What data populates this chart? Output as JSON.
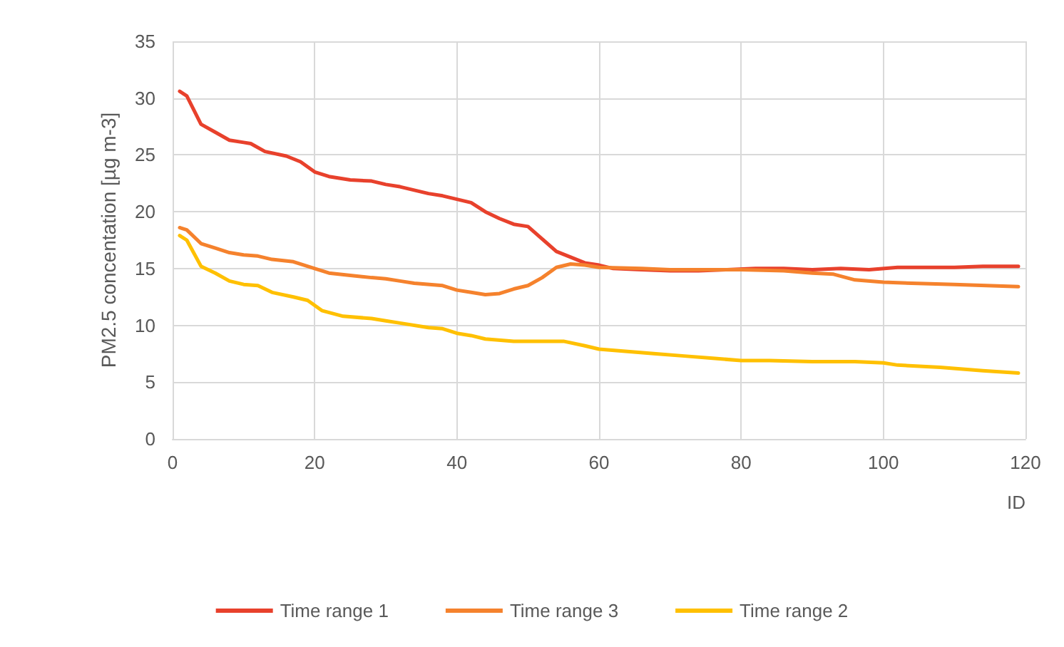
{
  "chart_data": {
    "type": "line",
    "xlabel": "ID",
    "ylabel": "PM2.5 concentation [µg m-3]",
    "xlim": [
      0,
      120
    ],
    "xticks": [
      0,
      20,
      40,
      60,
      80,
      100,
      120
    ],
    "ylim": [
      0,
      35
    ],
    "yticks": [
      0,
      5,
      10,
      15,
      20,
      25,
      30,
      35
    ],
    "grid": true,
    "legend": "bottom",
    "marker": "none",
    "line_style": "solid",
    "series": [
      {
        "name": "Time range 1",
        "color": "#e8412c",
        "x": [
          1,
          2,
          4,
          6,
          8,
          10,
          11,
          13,
          16,
          18,
          20,
          22,
          25,
          28,
          30,
          32,
          34,
          36,
          38,
          40,
          42,
          44,
          46,
          48,
          50,
          52,
          54,
          56,
          58,
          60,
          62,
          66,
          70,
          74,
          78,
          82,
          86,
          90,
          94,
          98,
          102,
          106,
          110,
          114,
          119
        ],
        "values": [
          30.6,
          30.2,
          27.7,
          27.0,
          26.3,
          26.1,
          26.0,
          25.3,
          24.9,
          24.4,
          23.5,
          23.1,
          22.8,
          22.7,
          22.4,
          22.2,
          21.9,
          21.6,
          21.4,
          21.1,
          20.8,
          20.0,
          19.4,
          18.9,
          18.7,
          17.6,
          16.5,
          16.0,
          15.5,
          15.3,
          15.0,
          14.9,
          14.8,
          14.8,
          14.9,
          15.0,
          15.0,
          14.9,
          15.0,
          14.9,
          15.1,
          15.1,
          15.1,
          15.2,
          15.2
        ]
      },
      {
        "name": "Time range 3",
        "color": "#f5822d",
        "x": [
          1,
          2,
          4,
          6,
          8,
          10,
          12,
          14,
          17,
          20,
          22,
          25,
          28,
          30,
          32,
          34,
          38,
          40,
          42,
          44,
          46,
          48,
          50,
          52,
          54,
          56,
          58,
          60,
          66,
          70,
          80,
          86,
          90,
          93,
          96,
          100,
          104,
          110,
          119
        ],
        "values": [
          18.6,
          18.4,
          17.2,
          16.8,
          16.4,
          16.2,
          16.1,
          15.8,
          15.6,
          15.0,
          14.6,
          14.4,
          14.2,
          14.1,
          13.9,
          13.7,
          13.5,
          13.1,
          12.9,
          12.7,
          12.8,
          13.2,
          13.5,
          14.2,
          15.1,
          15.4,
          15.3,
          15.1,
          15.0,
          14.9,
          14.9,
          14.8,
          14.6,
          14.5,
          14.0,
          13.8,
          13.7,
          13.6,
          13.4
        ]
      },
      {
        "name": "Time range 2",
        "color": "#ffc000",
        "x": [
          1,
          2,
          4,
          6,
          8,
          10,
          12,
          14,
          17,
          19,
          21,
          24,
          28,
          30,
          32,
          36,
          38,
          40,
          42,
          44,
          48,
          52,
          55,
          58,
          60,
          64,
          68,
          72,
          76,
          80,
          84,
          90,
          96,
          100,
          102,
          108,
          114,
          119
        ],
        "values": [
          17.9,
          17.5,
          15.2,
          14.6,
          13.9,
          13.6,
          13.5,
          12.9,
          12.5,
          12.2,
          11.3,
          10.8,
          10.6,
          10.4,
          10.2,
          9.8,
          9.7,
          9.3,
          9.1,
          8.8,
          8.6,
          8.6,
          8.6,
          8.2,
          7.9,
          7.7,
          7.5,
          7.3,
          7.1,
          6.9,
          6.9,
          6.8,
          6.8,
          6.7,
          6.5,
          6.3,
          6.0,
          5.8
        ]
      }
    ]
  }
}
